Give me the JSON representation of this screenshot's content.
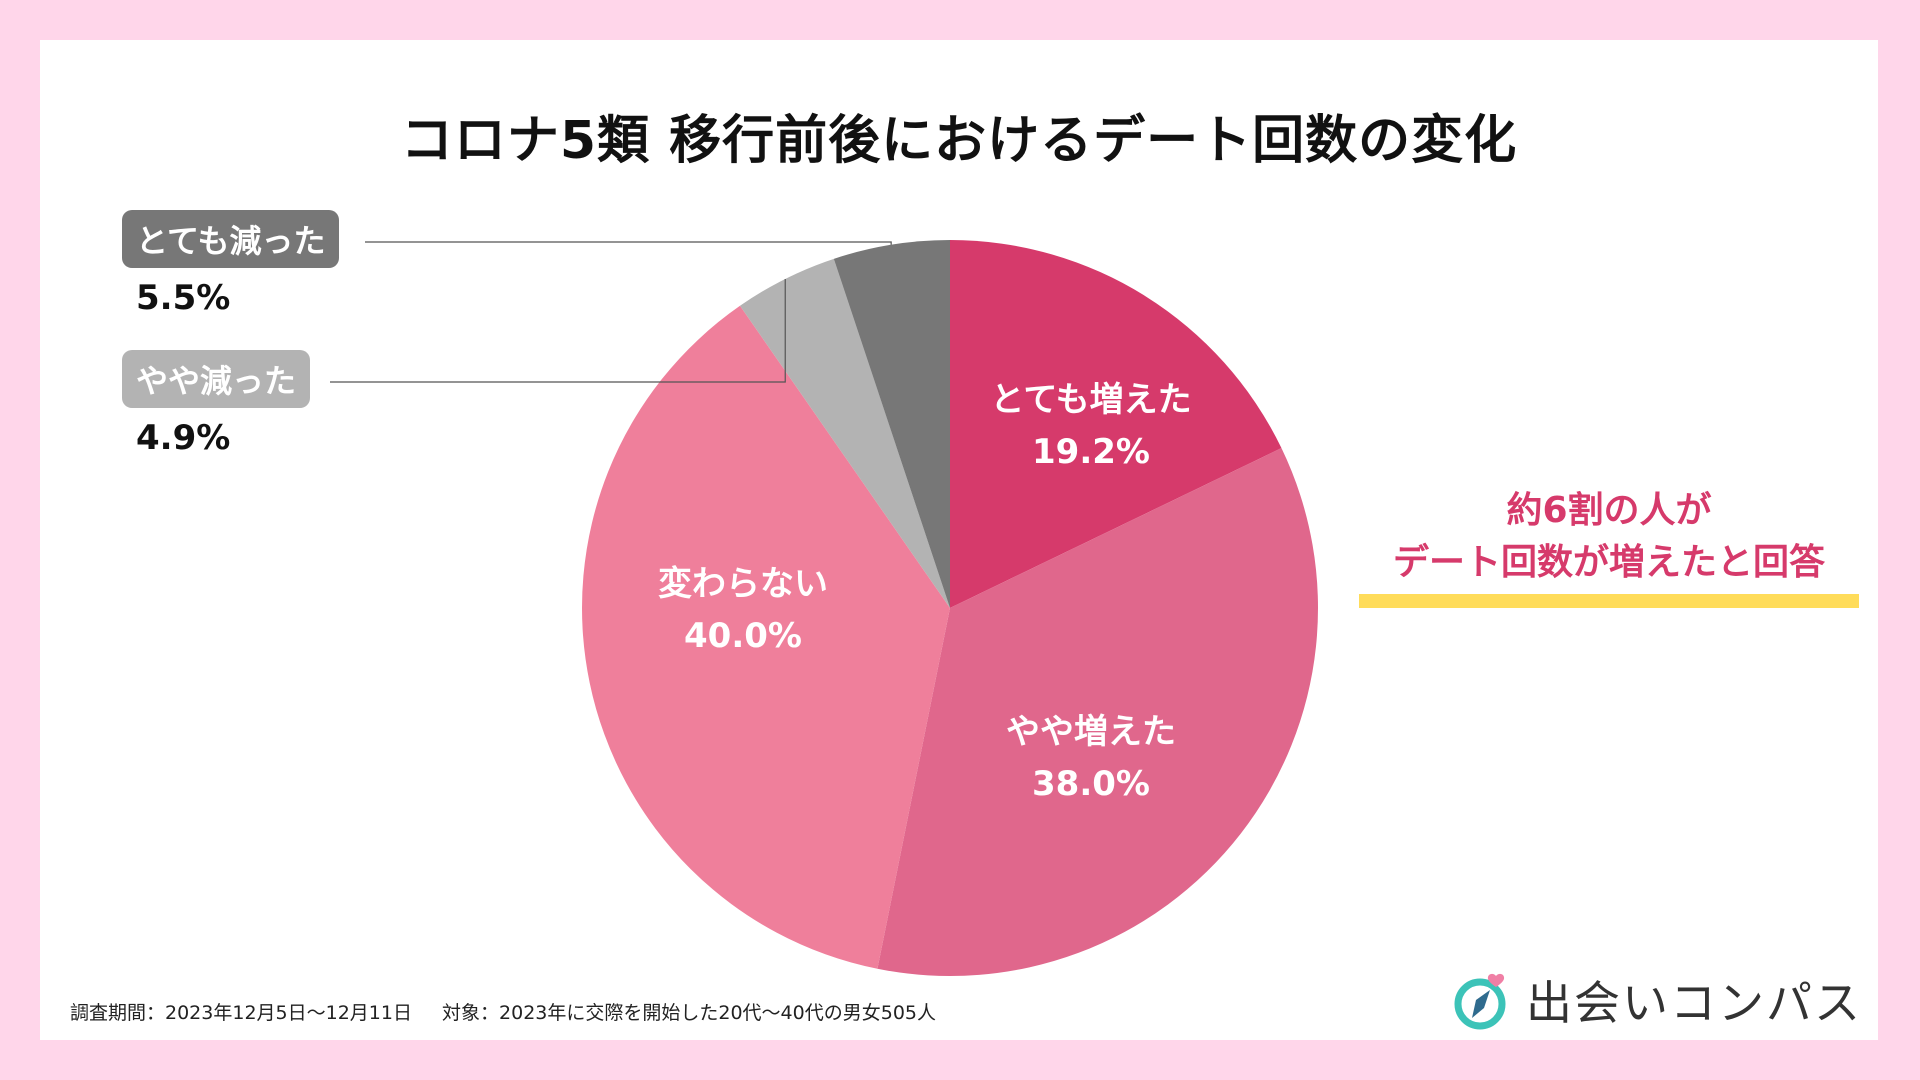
{
  "title": "コロナ5類 移行前後におけるデート回数の変化",
  "chart_data": {
    "type": "pie",
    "title": "コロナ5類 移行前後におけるデート回数の変化",
    "order": "clockwise from top",
    "slices": [
      {
        "label": "とても増えた",
        "value": 19.2,
        "display": "19.2%",
        "color": "#d63a6b"
      },
      {
        "label": "やや増えた",
        "value": 38.0,
        "display": "38.0%",
        "color": "#e0678c"
      },
      {
        "label": "変わらない",
        "value": 40.0,
        "display": "40.0%",
        "color": "#ef7f9b"
      },
      {
        "label": "やや減った",
        "value": 4.9,
        "display": "4.9%",
        "color": "#b3b3b3"
      },
      {
        "label": "とても減った",
        "value": 5.5,
        "display": "5.5%",
        "color": "#777777"
      }
    ]
  },
  "callout": {
    "line1": "約6割の人が",
    "line2": "デート回数が増えたと回答",
    "text_color": "#d63a6b",
    "underline_color": "#ffdc5a"
  },
  "footnote": {
    "period": "調査期間：2023年12月5日〜12月11日",
    "target": "対象：2023年に交際を開始した20代〜40代の男女505人"
  },
  "brand": {
    "name": "出会いコンパス",
    "icon": "compass-heart-icon"
  }
}
